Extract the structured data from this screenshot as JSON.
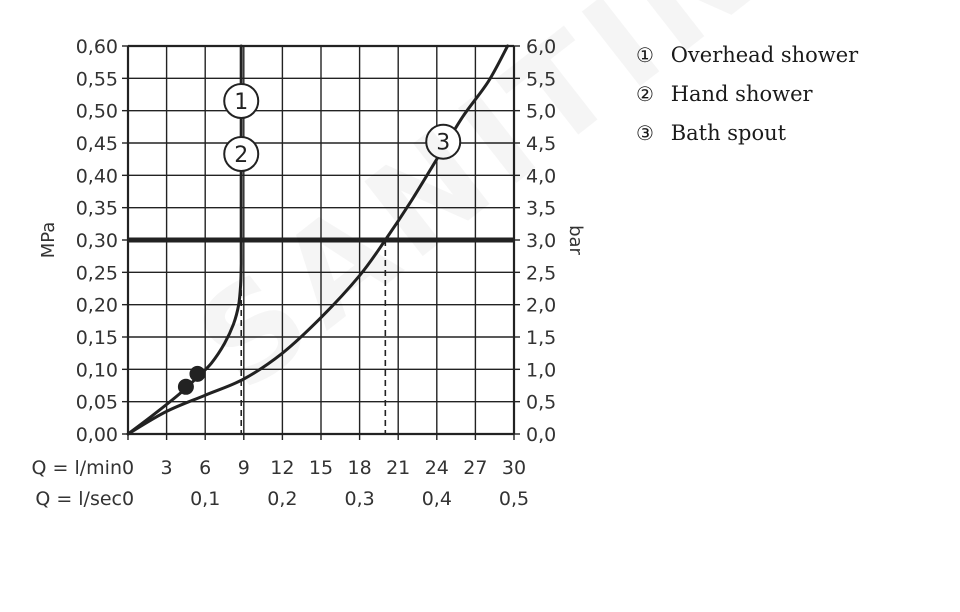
{
  "chart_data": {
    "type": "line",
    "ylabel": "MPa",
    "y2label": "bar",
    "ylim": [
      0,
      0.6
    ],
    "y2lim": [
      0,
      6
    ],
    "xlim": [
      0,
      30
    ],
    "yticks": [
      "0,00",
      "0,05",
      "0,10",
      "0,15",
      "0,20",
      "0,25",
      "0,30",
      "0,35",
      "0,40",
      "0,45",
      "0,50",
      "0,55",
      "0,60"
    ],
    "y2ticks": [
      "0,0",
      "0,5",
      "1,0",
      "1,5",
      "2,0",
      "2,5",
      "3,0",
      "3,5",
      "4,0",
      "4,5",
      "5,0",
      "5,5",
      "6,0"
    ],
    "x_rows": [
      {
        "label": "Q = l/min",
        "ticks": [
          {
            "x": 0,
            "t": "0"
          },
          {
            "x": 3,
            "t": "3"
          },
          {
            "x": 6,
            "t": "6"
          },
          {
            "x": 9,
            "t": "9"
          },
          {
            "x": 12,
            "t": "12"
          },
          {
            "x": 15,
            "t": "15"
          },
          {
            "x": 18,
            "t": "18"
          },
          {
            "x": 21,
            "t": "21"
          },
          {
            "x": 24,
            "t": "24"
          },
          {
            "x": 27,
            "t": "27"
          },
          {
            "x": 30,
            "t": "30"
          }
        ]
      },
      {
        "label": "Q = l/sec",
        "ticks": [
          {
            "x": 0,
            "t": "0"
          },
          {
            "x": 6,
            "t": "0,1"
          },
          {
            "x": 12,
            "t": "0,2"
          },
          {
            "x": 18,
            "t": "0,3"
          },
          {
            "x": 24,
            "t": "0,4"
          },
          {
            "x": 30,
            "t": "0,5"
          }
        ]
      }
    ],
    "grid": true,
    "reference_pressure": 0.3,
    "series": [
      {
        "name": "Overhead shower",
        "marker": "①",
        "points": [
          [
            0,
            0
          ],
          [
            2,
            0.03
          ],
          [
            4,
            0.062
          ],
          [
            5.5,
            0.09
          ],
          [
            6.5,
            0.11
          ],
          [
            7.5,
            0.14
          ],
          [
            8.2,
            0.17
          ],
          [
            8.6,
            0.2
          ],
          [
            8.75,
            0.23
          ],
          [
            8.8,
            0.26
          ],
          [
            8.8,
            0.3
          ],
          [
            8.8,
            0.6
          ]
        ],
        "label_at": [
          8.8,
          0.515
        ]
      },
      {
        "name": "Hand shower",
        "marker": "②",
        "points": [
          [
            0,
            0
          ],
          [
            2,
            0.03
          ],
          [
            4,
            0.062
          ],
          [
            5.5,
            0.09
          ],
          [
            6.5,
            0.11
          ],
          [
            7.5,
            0.14
          ],
          [
            8.2,
            0.17
          ],
          [
            8.6,
            0.2
          ],
          [
            8.75,
            0.23
          ],
          [
            8.8,
            0.26
          ],
          [
            8.8,
            0.3
          ],
          [
            8.8,
            0.6
          ]
        ],
        "label_at": [
          8.8,
          0.433
        ]
      },
      {
        "name": "Bath spout",
        "marker": "③",
        "points": [
          [
            0,
            0
          ],
          [
            3,
            0.035
          ],
          [
            6,
            0.06
          ],
          [
            9,
            0.085
          ],
          [
            12,
            0.125
          ],
          [
            15,
            0.18
          ],
          [
            18,
            0.245
          ],
          [
            20,
            0.3
          ],
          [
            22,
            0.36
          ],
          [
            24,
            0.425
          ],
          [
            26,
            0.49
          ],
          [
            28,
            0.545
          ],
          [
            29.5,
            0.6
          ]
        ],
        "label_at": [
          24.5,
          0.452
        ]
      }
    ],
    "operating_points": [
      [
        4.5,
        0.073
      ],
      [
        5.4,
        0.093
      ]
    ],
    "reading_lines": [
      {
        "x": 8.8,
        "y": 0.3
      },
      {
        "x": 20,
        "y": 0.3
      }
    ]
  },
  "legend": [
    {
      "num": "①",
      "label": "Overhead shower"
    },
    {
      "num": "②",
      "label": "Hand shower"
    },
    {
      "num": "③",
      "label": "Bath spout"
    }
  ],
  "watermark": "SANITINO"
}
